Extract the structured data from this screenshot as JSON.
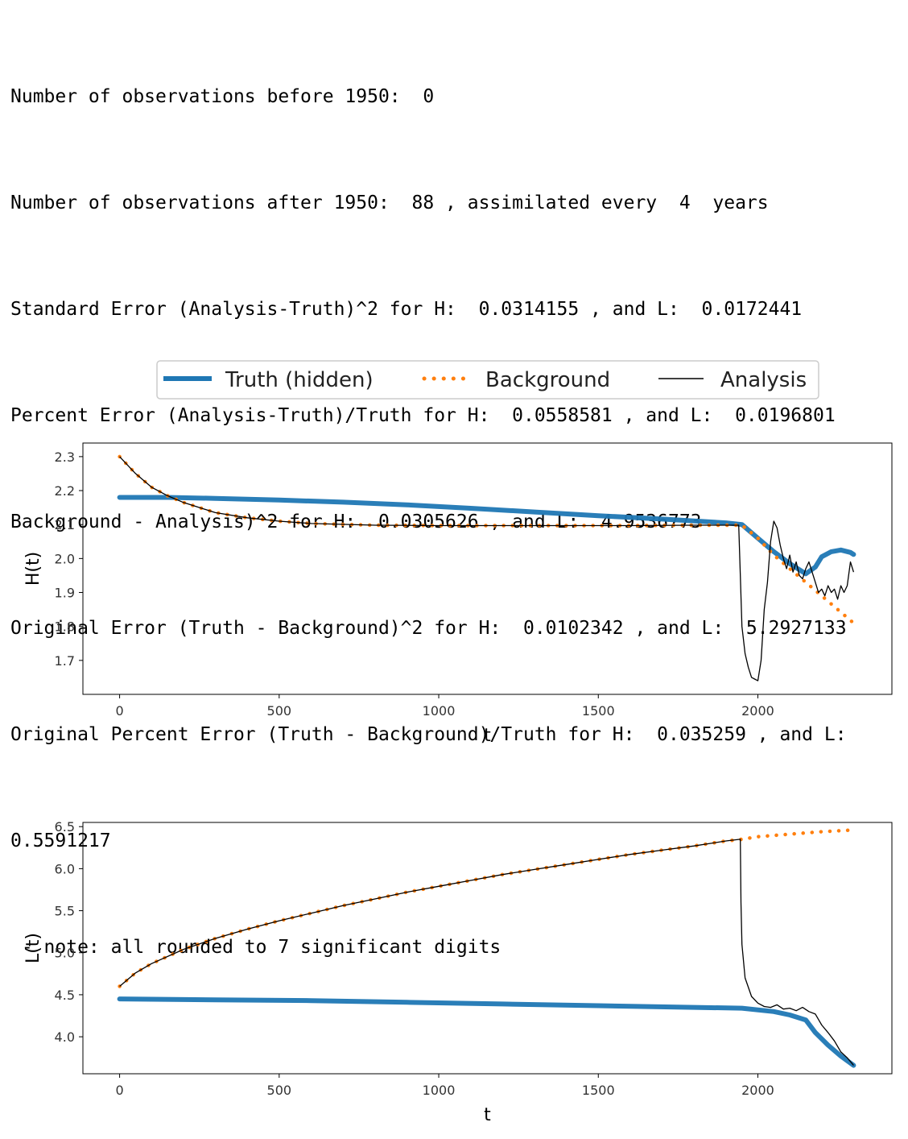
{
  "output_lines": [
    "Number of observations before 1950:  0",
    "Number of observations after 1950:  88 , assimilated every  4  years",
    "Standard Error (Analysis-Truth)^2 for H:  0.0314155 , and L:  0.0172441",
    "Percent Error (Analysis-Truth)/Truth for H:  0.0558581 , and L:  0.0196801",
    "Background - Analysis)^2 for H:  0.0305626 , and L:  4.9536773",
    "Original Error (Truth - Background)^2 for H:  0.0102342 , and L:  5.2927133",
    "Original Percent Error (Truth - Background)/Truth for H:  0.035259 , and L:",
    "0.5591217",
    " - note: all rounded to 7 significant digits"
  ],
  "legend": {
    "entries": [
      {
        "label": "Truth (hidden)",
        "color": "#1f77b4",
        "style": "solid-thick"
      },
      {
        "label": "Background",
        "color": "#ff7f0e",
        "style": "dotted"
      },
      {
        "label": "Analysis",
        "color": "#000000",
        "style": "solid-thin"
      }
    ]
  },
  "chart_data": [
    {
      "type": "line",
      "xlabel": "t",
      "ylabel": "H(t)",
      "xlim": [
        -115,
        2420
      ],
      "ylim": [
        1.6,
        2.34
      ],
      "xticks": [
        0,
        500,
        1000,
        1500,
        2000
      ],
      "yticks": [
        1.7,
        1.8,
        1.9,
        2.0,
        2.1,
        2.2,
        2.3
      ],
      "series": [
        {
          "name": "Truth (hidden)",
          "color": "#1f77b4",
          "x": [
            0,
            150,
            300,
            500,
            700,
            900,
            1100,
            1300,
            1500,
            1700,
            1900,
            1950,
            2000,
            2050,
            2100,
            2150,
            2180,
            2200,
            2230,
            2260,
            2290,
            2300
          ],
          "y": [
            2.18,
            2.18,
            2.177,
            2.172,
            2.166,
            2.158,
            2.148,
            2.137,
            2.126,
            2.116,
            2.105,
            2.1,
            2.06,
            2.02,
            1.985,
            1.955,
            1.975,
            2.005,
            2.02,
            2.025,
            2.018,
            2.012
          ]
        },
        {
          "name": "Background",
          "color": "#ff7f0e",
          "x": [
            0,
            50,
            100,
            150,
            200,
            300,
            400,
            500,
            600,
            800,
            1000,
            1200,
            1400,
            1600,
            1800,
            1950,
            2000,
            2050,
            2100,
            2150,
            2200,
            2250,
            2300
          ],
          "y": [
            2.3,
            2.25,
            2.21,
            2.185,
            2.165,
            2.135,
            2.12,
            2.11,
            2.103,
            2.098,
            2.097,
            2.097,
            2.097,
            2.097,
            2.098,
            2.098,
            2.06,
            2.01,
            1.97,
            1.93,
            1.89,
            1.85,
            1.81
          ]
        },
        {
          "name": "Analysis",
          "color": "#000000",
          "x": [
            0,
            50,
            100,
            150,
            200,
            300,
            400,
            500,
            600,
            800,
            1000,
            1200,
            1400,
            1600,
            1800,
            1940,
            1945,
            1950,
            1960,
            1970,
            1980,
            1990,
            2000,
            2010,
            2020,
            2030,
            2040,
            2050,
            2060,
            2070,
            2080,
            2090,
            2100,
            2110,
            2120,
            2130,
            2140,
            2150,
            2160,
            2170,
            2180,
            2190,
            2200,
            2210,
            2220,
            2230,
            2240,
            2250,
            2260,
            2270,
            2280,
            2290,
            2300
          ],
          "y": [
            2.3,
            2.25,
            2.21,
            2.185,
            2.165,
            2.135,
            2.12,
            2.11,
            2.103,
            2.098,
            2.097,
            2.097,
            2.097,
            2.097,
            2.098,
            2.098,
            1.95,
            1.8,
            1.72,
            1.68,
            1.65,
            1.645,
            1.64,
            1.7,
            1.85,
            1.93,
            2.05,
            2.11,
            2.09,
            2.04,
            2.0,
            1.97,
            2.01,
            1.96,
            1.99,
            1.95,
            1.94,
            1.97,
            1.99,
            1.96,
            1.93,
            1.9,
            1.91,
            1.89,
            1.92,
            1.9,
            1.91,
            1.88,
            1.92,
            1.9,
            1.92,
            1.99,
            1.96
          ]
        }
      ]
    },
    {
      "type": "line",
      "xlabel": "t",
      "ylabel": "L(t)",
      "xlim": [
        -115,
        2420
      ],
      "ylim": [
        3.56,
        6.55
      ],
      "xticks": [
        0,
        500,
        1000,
        1500,
        2000
      ],
      "yticks": [
        4.0,
        4.5,
        5.0,
        5.5,
        6.0,
        6.5
      ],
      "series": [
        {
          "name": "Truth (hidden)",
          "color": "#1f77b4",
          "x": [
            0,
            300,
            600,
            900,
            1200,
            1500,
            1800,
            1950,
            2050,
            2100,
            2150,
            2180,
            2220,
            2260,
            2300
          ],
          "y": [
            4.45,
            4.44,
            4.43,
            4.41,
            4.39,
            4.37,
            4.35,
            4.34,
            4.3,
            4.26,
            4.2,
            4.05,
            3.9,
            3.77,
            3.66
          ]
        },
        {
          "name": "Background",
          "color": "#ff7f0e",
          "x": [
            0,
            50,
            100,
            200,
            300,
            400,
            500,
            600,
            700,
            800,
            900,
            1000,
            1100,
            1200,
            1300,
            1400,
            1500,
            1600,
            1700,
            1800,
            1900,
            1950,
            2000,
            2100,
            2200,
            2300
          ],
          "y": [
            4.6,
            4.76,
            4.87,
            5.04,
            5.17,
            5.28,
            5.38,
            5.47,
            5.56,
            5.64,
            5.72,
            5.79,
            5.86,
            5.93,
            5.99,
            6.05,
            6.11,
            6.17,
            6.22,
            6.27,
            6.33,
            6.35,
            6.38,
            6.41,
            6.44,
            6.46
          ]
        },
        {
          "name": "Analysis",
          "color": "#000000",
          "x": [
            0,
            50,
            100,
            200,
            300,
            400,
            500,
            600,
            700,
            800,
            900,
            1000,
            1100,
            1200,
            1300,
            1400,
            1500,
            1600,
            1700,
            1800,
            1900,
            1945,
            1947,
            1950,
            1960,
            1980,
            2000,
            2020,
            2040,
            2060,
            2080,
            2100,
            2120,
            2140,
            2160,
            2180,
            2200,
            2220,
            2240,
            2260,
            2280,
            2300
          ],
          "y": [
            4.6,
            4.76,
            4.87,
            5.04,
            5.17,
            5.28,
            5.38,
            5.47,
            5.56,
            5.64,
            5.72,
            5.79,
            5.86,
            5.93,
            5.99,
            6.05,
            6.11,
            6.17,
            6.22,
            6.27,
            6.33,
            6.35,
            5.6,
            5.1,
            4.7,
            4.48,
            4.4,
            4.36,
            4.35,
            4.38,
            4.33,
            4.34,
            4.31,
            4.35,
            4.3,
            4.27,
            4.14,
            4.05,
            3.95,
            3.82,
            3.75,
            3.66
          ]
        }
      ]
    }
  ]
}
